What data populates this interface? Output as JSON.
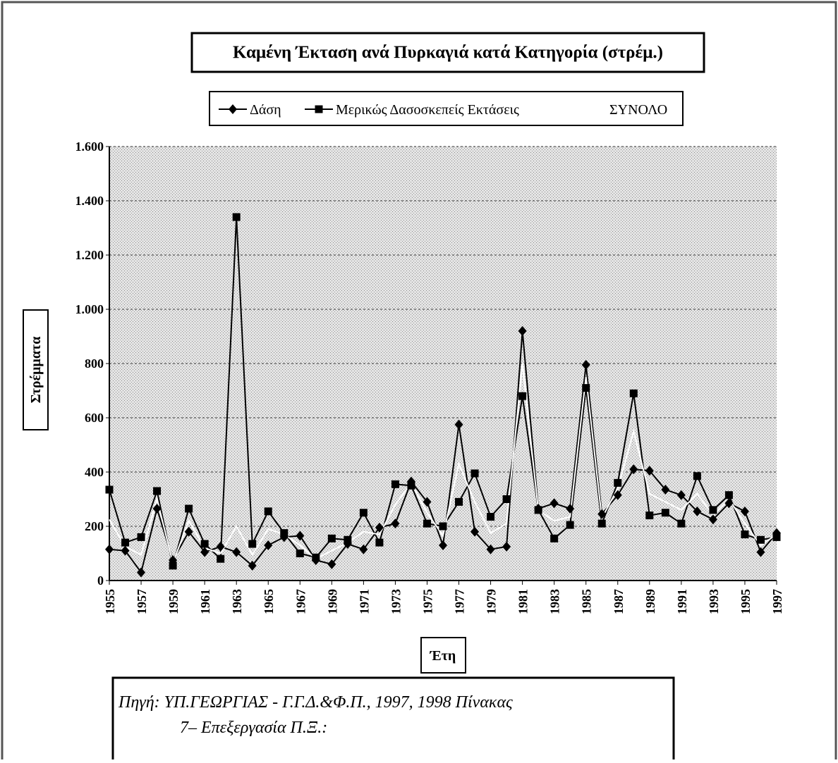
{
  "chart_data": {
    "type": "line",
    "title": "Καμένη Έκταση ανά Πυρκαγιά κατά Κατηγορία (στρέμ.)",
    "y_label": "Στρέμματα",
    "x_label": "Έτη",
    "source": [
      "Πηγή: ΥΠ.ΓΕΩΡΓΙΑΣ - Γ.Γ.Δ.&Φ.Π., 1997, 1998 Πίνακας",
      "7– Επεξεργασία Π.Ξ.:"
    ],
    "x": [
      1955,
      1956,
      1957,
      1958,
      1959,
      1960,
      1961,
      1962,
      1963,
      1964,
      1965,
      1966,
      1967,
      1968,
      1969,
      1970,
      1971,
      1972,
      1973,
      1974,
      1975,
      1976,
      1977,
      1978,
      1979,
      1980,
      1981,
      1982,
      1983,
      1984,
      1985,
      1986,
      1987,
      1988,
      1989,
      1990,
      1991,
      1992,
      1993,
      1994,
      1995,
      1996,
      1997
    ],
    "xlim": [
      1955,
      1997
    ],
    "xticks": [
      1955,
      1957,
      1959,
      1961,
      1963,
      1965,
      1967,
      1969,
      1971,
      1973,
      1975,
      1977,
      1979,
      1981,
      1983,
      1985,
      1987,
      1989,
      1991,
      1993,
      1995,
      1997
    ],
    "ylim": [
      0,
      1600
    ],
    "yticks": [
      0,
      200,
      400,
      600,
      800,
      {
        "value": 1000,
        "label": "1.000"
      },
      {
        "value": 1200,
        "label": "1.200"
      },
      {
        "value": 1400,
        "label": "1.400"
      },
      {
        "value": 1600,
        "label": "1.600"
      }
    ],
    "grid": true,
    "series": [
      {
        "name": "Δάση",
        "color": "#000000",
        "marker": "diamond",
        "values": [
          115,
          110,
          30,
          265,
          75,
          180,
          105,
          125,
          105,
          55,
          130,
          160,
          165,
          75,
          60,
          135,
          115,
          195,
          210,
          365,
          290,
          130,
          575,
          180,
          115,
          125,
          920,
          265,
          285,
          265,
          795,
          245,
          315,
          410,
          405,
          335,
          315,
          255,
          225,
          285,
          255,
          105,
          175
        ]
      },
      {
        "name": "Μερικώς Δασοσκεπείς Εκτάσεις",
        "color": "#000000",
        "marker": "square",
        "values": [
          335,
          140,
          160,
          330,
          55,
          265,
          135,
          80,
          1340,
          135,
          255,
          175,
          100,
          85,
          155,
          150,
          250,
          140,
          355,
          350,
          210,
          200,
          290,
          395,
          235,
          300,
          680,
          260,
          155,
          205,
          710,
          210,
          360,
          690,
          240,
          250,
          210,
          385,
          260,
          315,
          170,
          150,
          160
        ]
      },
      {
        "name": "ΣΥΝΟΛΟ",
        "color": "#ffffff",
        "marker": "none",
        "values": [
          225,
          125,
          95,
          300,
          65,
          220,
          120,
          100,
          200,
          95,
          190,
          170,
          130,
          80,
          110,
          140,
          180,
          170,
          280,
          360,
          250,
          165,
          430,
          290,
          175,
          210,
          800,
          260,
          220,
          235,
          750,
          230,
          340,
          550,
          320,
          290,
          260,
          320,
          240,
          300,
          210,
          130,
          170
        ]
      }
    ]
  }
}
